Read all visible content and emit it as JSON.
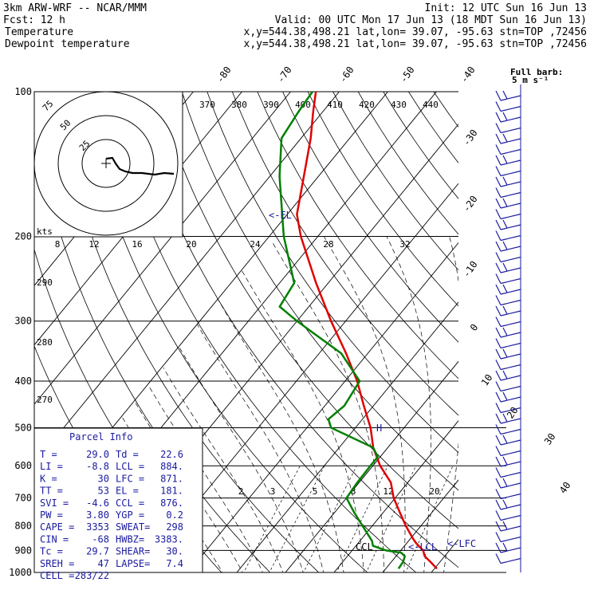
{
  "header": {
    "title": "3km ARW-WRF -- NCAR/MMM",
    "init": "Init: 12 UTC Sun 16 Jun 13",
    "fcst_label": "Fcst:",
    "fcst_value": "12 h",
    "valid": "Valid: 00 UTC Mon 17 Jun 13 (18 MDT Sun 16 Jun 13)",
    "temperature_line": {
      "name": "Temperature",
      "info": "x,y=544.38,498.21   lat,lon= 39.07, -95.63   stn=TOP ,72456",
      "color": "#e00000"
    },
    "dewpoint_line": {
      "name": "Dewpoint temperature",
      "info": "x,y=544.38,498.21   lat,lon= 39.07, -95.63   stn=TOP ,72456",
      "color": "#008000"
    }
  },
  "parcel_info": {
    "title": "Parcel Info",
    "rows": [
      [
        "T   =",
        "29.0",
        "Td  =",
        "22.6"
      ],
      [
        "LI  =",
        "-8.8",
        "LCL =",
        "884."
      ],
      [
        "K   =",
        "30",
        "LFC =",
        "871."
      ],
      [
        "TT  =",
        "53",
        "EL  =",
        "181."
      ],
      [
        "SVI =",
        "-4.6",
        "CCL =",
        "876."
      ],
      [
        "PW  =",
        "3.80",
        "YGP =",
        "0.2"
      ],
      [
        "CAPE =",
        "3353",
        "SWEAT=",
        "298"
      ],
      [
        "CIN  =",
        "-68",
        "HWBZ=",
        "3383."
      ],
      [
        "Tc  =",
        "29.7",
        "SHEAR=",
        "30."
      ],
      [
        "SREH =",
        "47",
        "LAPSE=",
        "7.4"
      ],
      [
        "CELL =",
        "283/22",
        "",
        ""
      ]
    ]
  },
  "hodograph": {
    "units_label": "kts",
    "ring_labels": [
      "25",
      "50",
      "75"
    ]
  },
  "wind_scale": {
    "label": "Full barb:",
    "value": "5 m s⁻¹"
  },
  "chart_data": {
    "type": "line",
    "title": "",
    "y_axis": {
      "label": "",
      "scale": "log-pressure",
      "range_hPa": [
        1000,
        100
      ],
      "ticks": [
        100,
        200,
        300,
        400,
        500,
        600,
        700,
        800,
        900,
        1000
      ]
    },
    "isotherm_labels": [
      "-80",
      "-70",
      "-60",
      "-50",
      "-40",
      "-30",
      "-20",
      "-10",
      "0",
      "10",
      "20",
      "30",
      "40"
    ],
    "theta_labels": [
      "370",
      "380",
      "390",
      "400",
      "410",
      "420",
      "430",
      "440"
    ],
    "theta_labels_low": [
      "290",
      "280",
      "270"
    ],
    "mixing_ratio_labels_top": [
      "8",
      "12",
      "16",
      "20",
      "24",
      "28",
      "32"
    ],
    "mixing_ratio_labels_low": [
      "2",
      "3",
      "5",
      "8",
      "12",
      "20"
    ],
    "annotations": [
      "<-EL",
      "CCL",
      "<-LCL",
      "<-LFC",
      "H"
    ],
    "series": [
      {
        "name": "Temperature",
        "color": "#e00000",
        "points": [
          [
            982,
            30.5
          ],
          [
            950,
            28.0
          ],
          [
            925,
            25.9
          ],
          [
            900,
            24.6
          ],
          [
            870,
            22.0
          ],
          [
            850,
            20.5
          ],
          [
            800,
            16.9
          ],
          [
            750,
            13.4
          ],
          [
            700,
            9.7
          ],
          [
            650,
            6.5
          ],
          [
            600,
            1.5
          ],
          [
            550,
            -3.0
          ],
          [
            500,
            -6.9
          ],
          [
            450,
            -12.0
          ],
          [
            400,
            -17.5
          ],
          [
            350,
            -24.5
          ],
          [
            300,
            -33.0
          ],
          [
            250,
            -42.5
          ],
          [
            200,
            -53.5
          ],
          [
            180,
            -58.0
          ],
          [
            150,
            -63.0
          ],
          [
            125,
            -68.0
          ],
          [
            110,
            -72.0
          ],
          [
            100,
            -74.8
          ]
        ]
      },
      {
        "name": "Dewpoint temperature",
        "color": "#008000",
        "points": [
          [
            982,
            22.6
          ],
          [
            950,
            22.4
          ],
          [
            925,
            21.8
          ],
          [
            910,
            20.5
          ],
          [
            900,
            17.0
          ],
          [
            880,
            13.5
          ],
          [
            860,
            12.5
          ],
          [
            800,
            8.0
          ],
          [
            750,
            4.0
          ],
          [
            700,
            0.0
          ],
          [
            650,
            -0.4
          ],
          [
            600,
            -0.5
          ],
          [
            575,
            -0.5
          ],
          [
            550,
            -3.0
          ],
          [
            500,
            -15.0
          ],
          [
            480,
            -17.0
          ],
          [
            450,
            -16.0
          ],
          [
            400,
            -17.0
          ],
          [
            350,
            -25.5
          ],
          [
            300,
            -40.0
          ],
          [
            280,
            -46.0
          ],
          [
            250,
            -47.0
          ],
          [
            200,
            -57.0
          ],
          [
            150,
            -68.0
          ],
          [
            125,
            -74.0
          ],
          [
            110,
            -75.0
          ],
          [
            100,
            -75.5
          ]
        ]
      }
    ]
  }
}
